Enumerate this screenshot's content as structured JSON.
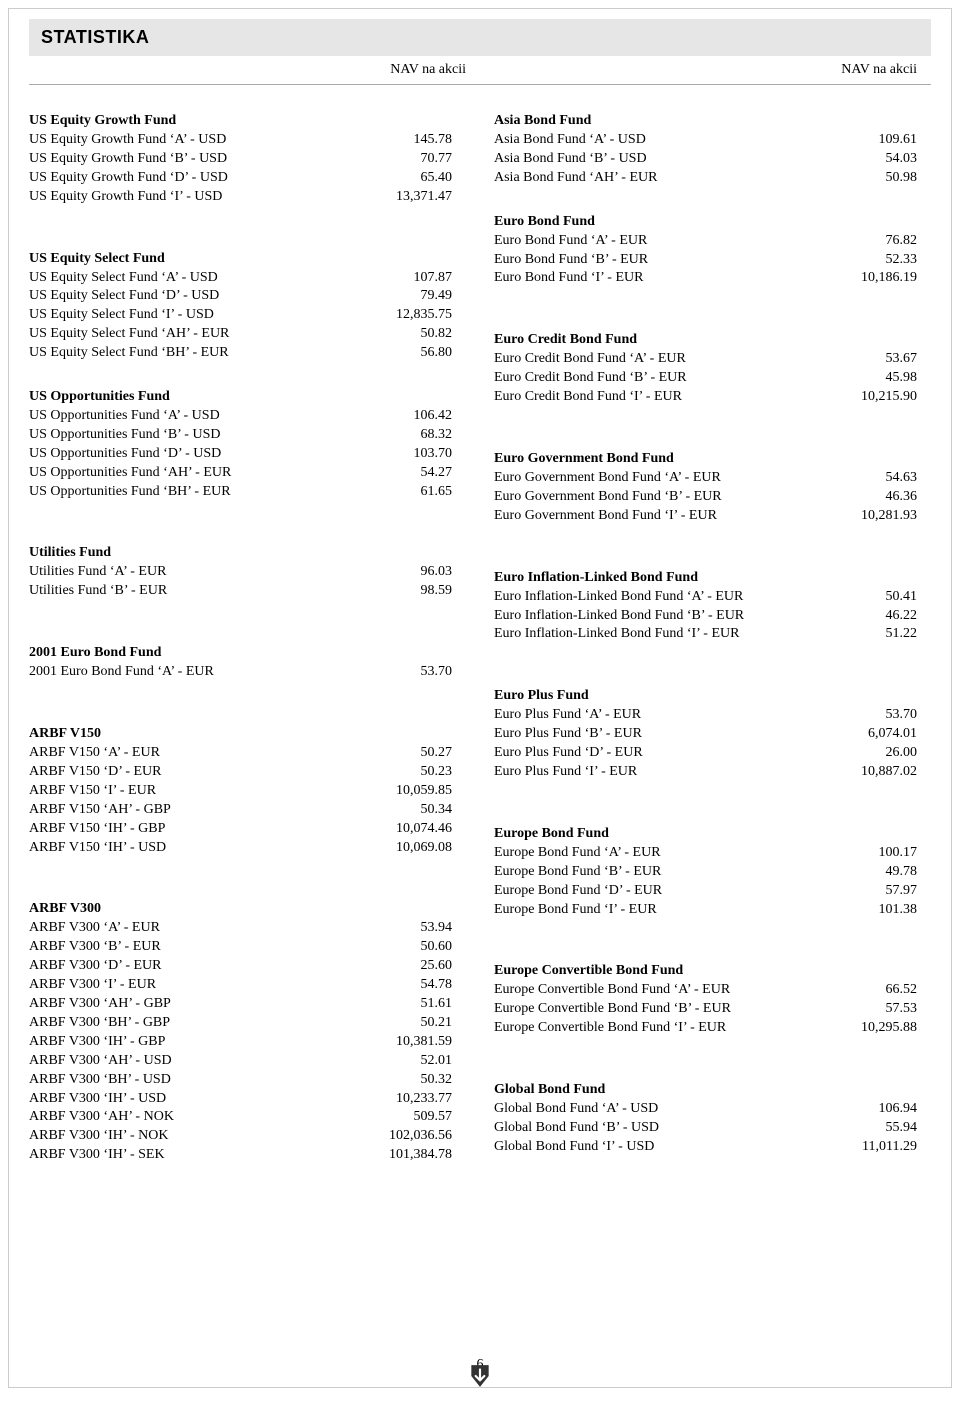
{
  "title": "STATISTIKA",
  "col_header": "NAV na akcii",
  "page_number": "6",
  "left": [
    {
      "title": "US Equity Growth Fund",
      "rows": [
        [
          "US Equity Growth Fund ‘A’ - USD",
          "145.78"
        ],
        [
          "US Equity Growth Fund ‘B’ - USD",
          "70.77"
        ],
        [
          "US Equity Growth Fund ‘D’ - USD",
          "65.40"
        ],
        [
          "US Equity Growth Fund ‘I’ - USD",
          "13,371.47"
        ]
      ]
    },
    {
      "title": "US Equity Select Fund",
      "pre_spacer": 1,
      "rows": [
        [
          "US Equity Select Fund ‘A’ - USD",
          "107.87"
        ],
        [
          "US Equity Select Fund ‘D’ - USD",
          "79.49"
        ],
        [
          "US Equity Select Fund ‘I’ - USD",
          "12,835.75"
        ],
        [
          "US Equity Select Fund ‘AH’ - EUR",
          "50.82"
        ],
        [
          "US Equity Select Fund ‘BH’ - EUR",
          "56.80"
        ]
      ]
    },
    {
      "title": "US Opportunities Fund",
      "rows": [
        [
          "US Opportunities Fund ‘A’ - USD",
          "106.42"
        ],
        [
          "US Opportunities Fund ‘B’ - USD",
          "68.32"
        ],
        [
          "US Opportunities Fund ‘D’ - USD",
          "103.70"
        ],
        [
          "US Opportunities Fund ‘AH’ - EUR",
          "54.27"
        ],
        [
          "US Opportunities Fund ‘BH’ - EUR",
          "61.65"
        ]
      ]
    },
    {
      "title": "Utilities Fund",
      "pre_spacer": 1,
      "rows": [
        [
          "Utilities Fund ‘A’ - EUR",
          "96.03"
        ],
        [
          "Utilities Fund ‘B’ - EUR",
          "98.59"
        ]
      ]
    },
    {
      "title": "2001 Euro Bond Fund",
      "pre_spacer": 1,
      "rows": [
        [
          "2001 Euro Bond Fund ‘A’ - EUR",
          "53.70"
        ]
      ]
    },
    {
      "title": "ARBF V150",
      "pre_spacer": 1,
      "rows": [
        [
          "ARBF V150 ‘A’ - EUR",
          "50.27"
        ],
        [
          "ARBF V150 ‘D’ - EUR",
          "50.23"
        ],
        [
          "ARBF V150 ‘I’ - EUR",
          "10,059.85"
        ],
        [
          "ARBF V150 ‘AH’ - GBP",
          "50.34"
        ],
        [
          "ARBF V150 ‘IH’ - GBP",
          "10,074.46"
        ],
        [
          "ARBF V150 ‘IH’ - USD",
          "10,069.08"
        ]
      ]
    },
    {
      "title": "ARBF V300",
      "pre_spacer": 1,
      "rows": [
        [
          "ARBF V300 ‘A’ - EUR",
          "53.94"
        ],
        [
          "ARBF V300 ‘B’ - EUR",
          "50.60"
        ],
        [
          "ARBF V300 ‘D’ - EUR",
          "25.60"
        ],
        [
          "ARBF V300 ‘I’ - EUR",
          "54.78"
        ],
        [
          "ARBF V300 ‘AH’ - GBP",
          "51.61"
        ],
        [
          "ARBF V300 ‘BH’ - GBP",
          "50.21"
        ],
        [
          "ARBF V300 ‘IH’ - GBP",
          "10,381.59"
        ],
        [
          "ARBF V300 ‘AH’ - USD",
          "52.01"
        ],
        [
          "ARBF V300 ‘BH’ - USD",
          "50.32"
        ],
        [
          "ARBF V300 ‘IH’ - USD",
          "10,233.77"
        ],
        [
          "ARBF V300 ‘AH’ - NOK",
          "509.57"
        ],
        [
          "ARBF V300 ‘IH’ - NOK",
          "102,036.56"
        ],
        [
          "ARBF V300 ‘IH’ - SEK",
          "101,384.78"
        ]
      ]
    }
  ],
  "right": [
    {
      "title": "Asia Bond Fund",
      "rows": [
        [
          "Asia Bond Fund ‘A’ - USD",
          "109.61"
        ],
        [
          "Asia Bond Fund ‘B’ - USD",
          "54.03"
        ],
        [
          "Asia Bond Fund ‘AH’ - EUR",
          "50.98"
        ]
      ]
    },
    {
      "title": "Euro Bond Fund",
      "rows": [
        [
          "Euro Bond Fund ‘A’ - EUR",
          "76.82"
        ],
        [
          "Euro Bond Fund ‘B’ - EUR",
          "52.33"
        ],
        [
          "Euro Bond Fund ‘I’ - EUR",
          "10,186.19"
        ]
      ]
    },
    {
      "title": "Euro Credit Bond Fund",
      "pre_spacer": 1,
      "rows": [
        [
          "Euro Credit Bond Fund ‘A’ - EUR",
          "53.67"
        ],
        [
          "Euro Credit Bond Fund ‘B’ - EUR",
          "45.98"
        ],
        [
          "Euro Credit Bond Fund ‘I’ - EUR",
          "10,215.90"
        ]
      ]
    },
    {
      "title": "Euro Government Bond Fund",
      "pre_spacer": 1,
      "rows": [
        [
          "Euro Government Bond Fund ‘A’ - EUR",
          "54.63"
        ],
        [
          "Euro Government Bond Fund ‘B’ - EUR",
          "46.36"
        ],
        [
          "Euro Government Bond Fund ‘I’ - EUR",
          "10,281.93"
        ]
      ]
    },
    {
      "title": "Euro Inflation-Linked Bond Fund",
      "pre_spacer": 1,
      "rows": [
        [
          "Euro Inflation-Linked Bond Fund ‘A’ - EUR",
          "50.41"
        ],
        [
          "Euro Inflation-Linked Bond Fund ‘B’ - EUR",
          "46.22"
        ],
        [
          "Euro Inflation-Linked Bond Fund ‘I’ - EUR",
          "51.22"
        ]
      ]
    },
    {
      "title": "Euro Plus Fund",
      "pre_spacer": 1,
      "rows": [
        [
          "Euro Plus Fund ‘A’ - EUR",
          "53.70"
        ],
        [
          "Euro Plus Fund ‘B’ - EUR",
          "6,074.01"
        ],
        [
          "Euro Plus Fund ‘D’ - EUR",
          "26.00"
        ],
        [
          "Euro Plus Fund ‘I’ - EUR",
          "10,887.02"
        ]
      ]
    },
    {
      "title": "Europe Bond Fund",
      "pre_spacer": 1,
      "rows": [
        [
          "Europe Bond Fund ‘A’ - EUR",
          "100.17"
        ],
        [
          "Europe Bond Fund ‘B’ - EUR",
          "49.78"
        ],
        [
          "Europe Bond Fund ‘D’ - EUR",
          "57.97"
        ],
        [
          "Europe Bond Fund ‘I’ - EUR",
          "101.38"
        ]
      ]
    },
    {
      "title": "Europe Convertible Bond Fund",
      "pre_spacer": 1,
      "rows": [
        [
          "Europe Convertible Bond Fund ‘A’ - EUR",
          "66.52"
        ],
        [
          "Europe Convertible Bond Fund ‘B’ - EUR",
          "57.53"
        ],
        [
          "Europe Convertible Bond Fund ‘I’ - EUR",
          "10,295.88"
        ]
      ]
    },
    {
      "title": "Global Bond Fund",
      "pre_spacer": 1,
      "rows": [
        [
          "Global Bond Fund ‘A’ - USD",
          "106.94"
        ],
        [
          "Global Bond Fund ‘B’ - USD",
          "55.94"
        ],
        [
          "Global Bond Fund ‘I’ - USD",
          "11,011.29"
        ]
      ]
    }
  ]
}
